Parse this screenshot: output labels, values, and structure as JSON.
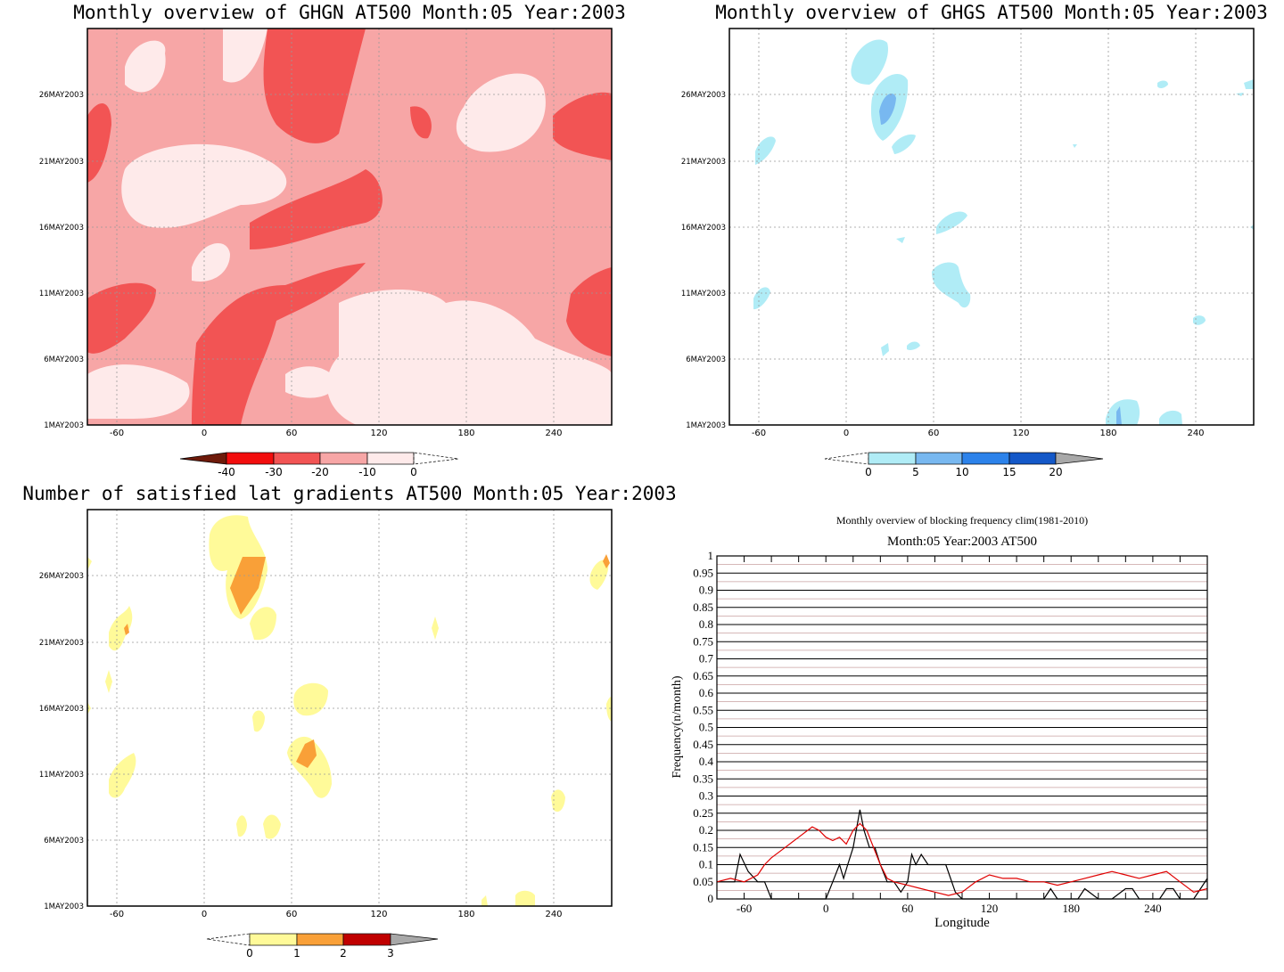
{
  "chart_data": [
    {
      "type": "heatmap",
      "title": "Monthly overview of GHGN AT500 Month:05 Year:2003",
      "x_ticks": [
        "-60",
        "0",
        "60",
        "120",
        "180",
        "240"
      ],
      "y_ticks": [
        "1MAY2003",
        "6MAY2003",
        "11MAY2003",
        "16MAY2003",
        "21MAY2003",
        "26MAY2003"
      ],
      "xlim": [
        -80,
        280
      ],
      "ylim": [
        1,
        31
      ],
      "colorbar": {
        "labels": [
          "-40",
          "-30",
          "-20",
          "-10",
          "0"
        ],
        "colors": [
          "#6e1a0a",
          "#f20d0d",
          "#f25454",
          "#f7a6a6",
          "#feeaea"
        ]
      }
    },
    {
      "type": "heatmap",
      "title": "Monthly overview of GHGS AT500 Month:05 Year:2003",
      "x_ticks": [
        "-60",
        "0",
        "60",
        "120",
        "180",
        "240"
      ],
      "y_ticks": [
        "1MAY2003",
        "6MAY2003",
        "11MAY2003",
        "16MAY2003",
        "21MAY2003",
        "26MAY2003"
      ],
      "xlim": [
        -80,
        280
      ],
      "ylim": [
        1,
        31
      ],
      "colorbar": {
        "labels": [
          "0",
          "5",
          "10",
          "15",
          "20"
        ],
        "colors": [
          "#b0ecf6",
          "#78b8f0",
          "#2c82ea",
          "#1458c8",
          "#a8a8a8"
        ]
      }
    },
    {
      "type": "heatmap",
      "title": "Number of satisfied lat gradients AT500 Month:05 Year:2003",
      "x_ticks": [
        "-60",
        "0",
        "60",
        "120",
        "180",
        "240"
      ],
      "y_ticks": [
        "1MAY2003",
        "6MAY2003",
        "11MAY2003",
        "16MAY2003",
        "21MAY2003",
        "26MAY2003"
      ],
      "xlim": [
        -80,
        280
      ],
      "ylim": [
        1,
        31
      ],
      "colorbar": {
        "labels": [
          "0",
          "1",
          "2",
          "3"
        ],
        "colors": [
          "#fffa99",
          "#f9a038",
          "#c00000",
          "#a8a8a8"
        ]
      }
    },
    {
      "type": "line",
      "title": "Monthly overview of blocking frequency clim(1981-2010)",
      "subtitle": "Month:05 Year:2003  AT500",
      "xlabel": "Longitude",
      "ylabel": "Frequency(n/month)",
      "xlim": [
        -80,
        280
      ],
      "ylim": [
        0,
        1
      ],
      "x_ticks": [
        "-60",
        "0",
        "60",
        "120",
        "180",
        "240"
      ],
      "y_ticks": [
        "0",
        "0.05",
        "0.1",
        "0.15",
        "0.2",
        "0.25",
        "0.3",
        "0.35",
        "0.4",
        "0.45",
        "0.5",
        "0.55",
        "0.6",
        "0.65",
        "0.7",
        "0.75",
        "0.8",
        "0.85",
        "0.9",
        "0.95",
        "1"
      ],
      "series": [
        {
          "color": "#000000",
          "x": [
            -80,
            -75,
            -67,
            -63,
            -57,
            -50,
            -45,
            -40,
            -30,
            -20,
            -10,
            0,
            5,
            10,
            13,
            16,
            20,
            25,
            28,
            32,
            36,
            40,
            45,
            50,
            55,
            60,
            63,
            66,
            70,
            75,
            80,
            88,
            95,
            100,
            130,
            140,
            160,
            165,
            170,
            185,
            190,
            200,
            210,
            220,
            225,
            230,
            235,
            245,
            250,
            255,
            260,
            270,
            275,
            280
          ],
          "y": [
            0.05,
            0.05,
            0.05,
            0.13,
            0.08,
            0.05,
            0.05,
            0,
            0,
            0,
            0,
            0,
            0.05,
            0.1,
            0.06,
            0.1,
            0.15,
            0.26,
            0.2,
            0.15,
            0.15,
            0.1,
            0.05,
            0.05,
            0.02,
            0.05,
            0.13,
            0.1,
            0.13,
            0.1,
            0.1,
            0.1,
            0.02,
            0,
            0,
            0,
            0,
            0.03,
            0,
            0,
            0.03,
            0,
            0,
            0.03,
            0.03,
            0,
            0,
            0,
            0.03,
            0.03,
            0,
            0,
            0.03,
            0.06
          ]
        },
        {
          "color": "#e00000",
          "x": [
            -80,
            -70,
            -60,
            -50,
            -45,
            -40,
            -30,
            -20,
            -10,
            -5,
            0,
            5,
            10,
            15,
            20,
            25,
            30,
            35,
            40,
            45,
            50,
            60,
            70,
            80,
            90,
            100,
            110,
            120,
            130,
            140,
            150,
            160,
            170,
            180,
            190,
            200,
            210,
            220,
            230,
            240,
            250,
            260,
            270,
            280
          ],
          "y": [
            0.05,
            0.06,
            0.05,
            0.07,
            0.1,
            0.12,
            0.15,
            0.18,
            0.21,
            0.2,
            0.18,
            0.17,
            0.18,
            0.16,
            0.2,
            0.22,
            0.2,
            0.15,
            0.1,
            0.06,
            0.05,
            0.04,
            0.03,
            0.02,
            0.01,
            0.02,
            0.05,
            0.07,
            0.06,
            0.06,
            0.05,
            0.05,
            0.04,
            0.05,
            0.06,
            0.07,
            0.08,
            0.07,
            0.06,
            0.07,
            0.08,
            0.05,
            0.02,
            0.03
          ]
        }
      ]
    }
  ]
}
